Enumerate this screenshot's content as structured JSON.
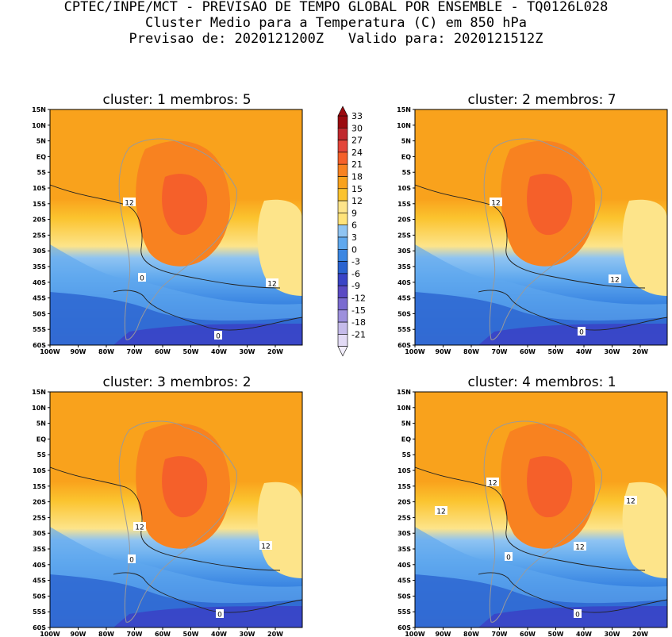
{
  "header": {
    "line1": "CPTEC/INPE/MCT - PREVISAO DE TEMPO GLOBAL POR ENSEMBLE - TQ0126L028",
    "line2": "Cluster Medio para a Temperatura (C) em 850 hPa",
    "line3": "Previsao de: 2020121200Z   Valido para: 2020121512Z"
  },
  "panels": [
    {
      "title": "cluster: 1   membros: 5",
      "contour_labels": [
        "12",
        "12",
        "0",
        "0"
      ]
    },
    {
      "title": "cluster: 2   membros: 7",
      "contour_labels": [
        "12",
        "12",
        "0"
      ]
    },
    {
      "title": "cluster: 3   membros: 2",
      "contour_labels": [
        "12",
        "12",
        "0",
        "0"
      ]
    },
    {
      "title": "cluster: 4   membros: 1",
      "contour_labels": [
        "12",
        "12",
        "12",
        "12",
        "0",
        "0"
      ]
    }
  ],
  "axes": {
    "lat_ticks": [
      "15N",
      "10N",
      "5N",
      "EQ",
      "5S",
      "10S",
      "15S",
      "20S",
      "25S",
      "30S",
      "35S",
      "40S",
      "45S",
      "50S",
      "55S",
      "60S"
    ],
    "lon_ticks": [
      "100W",
      "90W",
      "80W",
      "70W",
      "60W",
      "50W",
      "40W",
      "30W",
      "20W"
    ]
  },
  "colorbar": {
    "labels": [
      "33",
      "30",
      "27",
      "24",
      "21",
      "18",
      "15",
      "12",
      "9",
      "6",
      "3",
      "0",
      "-3",
      "-6",
      "-9",
      "-12",
      "-15",
      "-18",
      "-21"
    ],
    "colors": [
      "#9b0a0f",
      "#c0282d",
      "#e3453a",
      "#f5602a",
      "#f88220",
      "#f9a21c",
      "#fbc32e",
      "#fde48a",
      "#ffe37a",
      "#8fc4f2",
      "#5fa8ee",
      "#3b86e2",
      "#2a63d0",
      "#3a44c6",
      "#5a4ac4",
      "#7a6bd0",
      "#9d90dc",
      "#c5bbea",
      "#e2daf5"
    ]
  }
}
